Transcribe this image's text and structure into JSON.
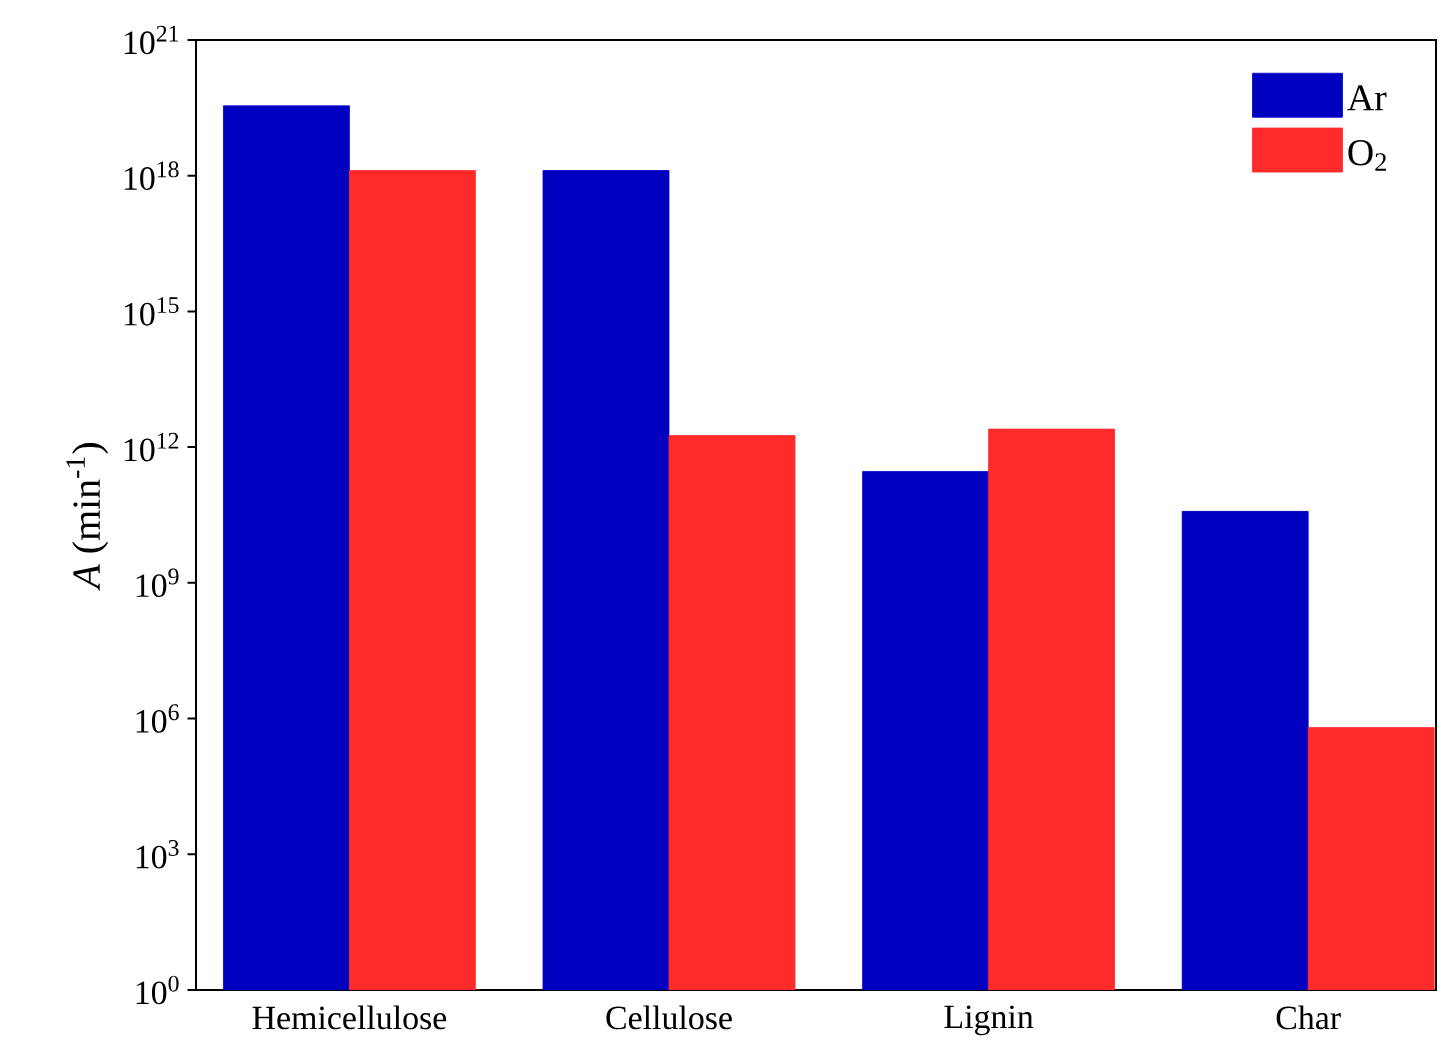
{
  "chart_data": {
    "type": "bar",
    "ylabel": "*A* (min$^{-1}$)",
    "categories": [
      "Hemicellulose",
      "Cellulose",
      "Lignin",
      "Char"
    ],
    "series": [
      {
        "name": "Ar",
        "color": "#0000c0",
        "values": [
          3.5e+19,
          1.3e+18,
          290000000000.0,
          38000000000.0
        ]
      },
      {
        "name": "O$_{2}$",
        "color": "#ff2a2a",
        "values": [
          1.3e+18,
          1800000000000.0,
          2500000000000.0,
          630000.0
        ]
      }
    ],
    "log": "y",
    "ylim": [
      1,
      1e+21
    ],
    "yticks": [
      {
        "value": 1,
        "label": "10$^{0}$"
      },
      {
        "value": 1000,
        "label": "10$^{3}$"
      },
      {
        "value": 1000000.0,
        "label": "10$^{6}$"
      },
      {
        "value": 1000000000.0,
        "label": "10$^{9}$"
      },
      {
        "value": 1000000000000.0,
        "label": "10$^{12}$"
      },
      {
        "value": 1000000000000000.0,
        "label": "10$^{15}$"
      },
      {
        "value": 1e+18,
        "label": "10$^{18}$"
      },
      {
        "value": 1e+21,
        "label": "10$^{21}$"
      }
    ],
    "legend": "top right",
    "grid": false
  }
}
